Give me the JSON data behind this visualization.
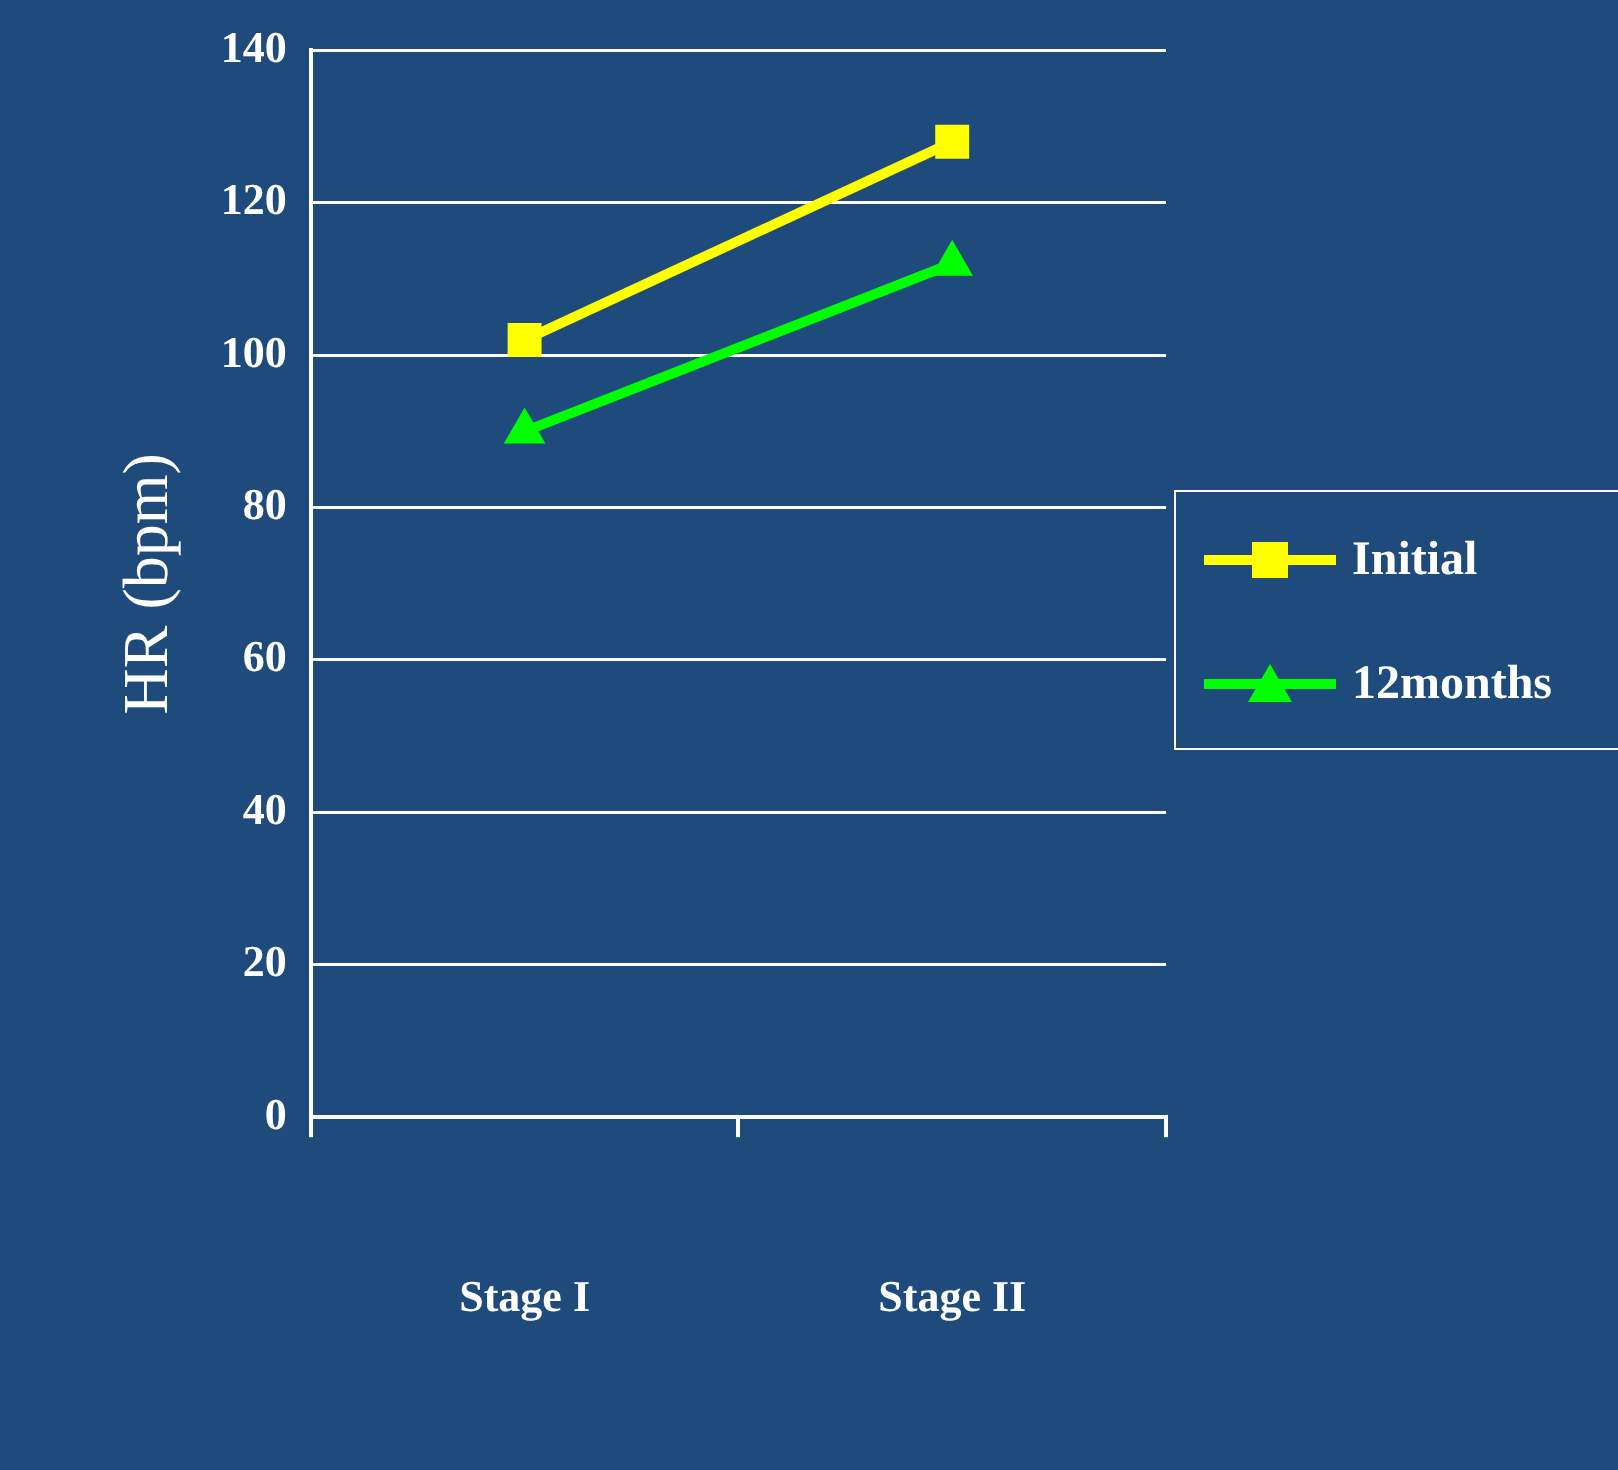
{
  "chart_data": {
    "type": "line",
    "ylabel": "HR (bpm)",
    "categories": [
      "Stage I",
      "Stage II"
    ],
    "series": [
      {
        "name": "Initial",
        "color": "#ffff00",
        "values": [
          102,
          128
        ],
        "marker": "square"
      },
      {
        "name": "12months",
        "color": "#00ff00",
        "values": [
          90,
          112
        ],
        "marker": "triangle"
      }
    ],
    "ylim": [
      0,
      140
    ],
    "yticks": [
      0,
      20,
      40,
      60,
      80,
      100,
      120,
      140
    ],
    "grid": "y",
    "legend": "right",
    "line_style": "solid"
  }
}
